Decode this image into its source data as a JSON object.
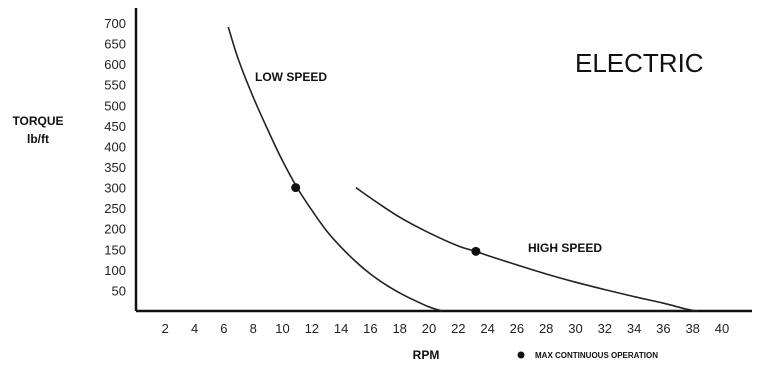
{
  "chart_data": {
    "type": "line",
    "title": "ELECTRIC",
    "xlabel": "RPM",
    "ylabel_line1": "TORQUE",
    "ylabel_line2": "lb/ft",
    "xlim": [
      0,
      40
    ],
    "ylim": [
      0,
      700
    ],
    "x_ticks": [
      2,
      4,
      6,
      8,
      10,
      12,
      14,
      16,
      18,
      20,
      22,
      24,
      26,
      28,
      30,
      32,
      34,
      36,
      38,
      40
    ],
    "y_ticks": [
      50,
      100,
      150,
      200,
      250,
      300,
      350,
      400,
      450,
      500,
      550,
      600,
      650,
      700
    ],
    "grid": false,
    "series": [
      {
        "name": "LOW SPEED",
        "points": [
          [
            6.3,
            690
          ],
          [
            7,
            610
          ],
          [
            8,
            520
          ],
          [
            9,
            440
          ],
          [
            10,
            365
          ],
          [
            11,
            300
          ],
          [
            12,
            245
          ],
          [
            13,
            195
          ],
          [
            14,
            155
          ],
          [
            15,
            120
          ],
          [
            16,
            90
          ],
          [
            17,
            65
          ],
          [
            18,
            44
          ],
          [
            19,
            26
          ],
          [
            20,
            10
          ],
          [
            20.9,
            0
          ]
        ],
        "max_continuous": [
          10.9,
          300
        ]
      },
      {
        "name": "HIGH SPEED",
        "points": [
          [
            15,
            300
          ],
          [
            16,
            275
          ],
          [
            18,
            228
          ],
          [
            20,
            190
          ],
          [
            22,
            158
          ],
          [
            23.2,
            145
          ],
          [
            24,
            135
          ],
          [
            26,
            112
          ],
          [
            28,
            90
          ],
          [
            30,
            70
          ],
          [
            32,
            52
          ],
          [
            34,
            35
          ],
          [
            36,
            19
          ],
          [
            37.5,
            5
          ],
          [
            38.3,
            0
          ]
        ],
        "max_continuous": [
          23.2,
          145
        ]
      }
    ],
    "legend": {
      "marker": "dot",
      "label": "MAX CONTINUOUS OPERATION",
      "placement": "bottom-right"
    }
  }
}
